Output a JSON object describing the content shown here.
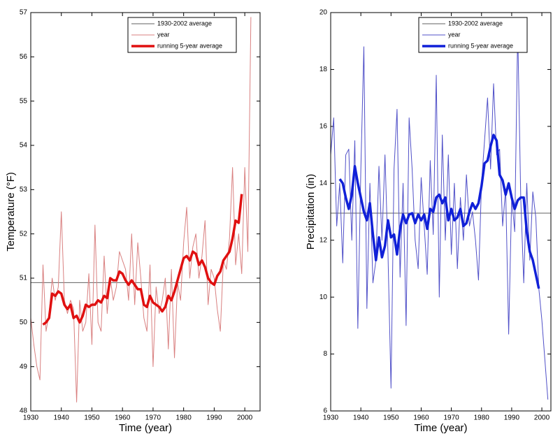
{
  "chart_data": [
    {
      "type": "line",
      "xlabel": "Time (year)",
      "ylabel": "Temperature (°F)",
      "xlim": [
        1930,
        2005
      ],
      "ylim": [
        48,
        57
      ],
      "xticks": [
        1930,
        1940,
        1950,
        1960,
        1970,
        1980,
        1990,
        2000
      ],
      "yticks": [
        48,
        49,
        50,
        51,
        52,
        53,
        54,
        55,
        56,
        57
      ],
      "legend": "upper right",
      "x": [
        1930,
        1931,
        1932,
        1933,
        1934,
        1935,
        1936,
        1937,
        1938,
        1939,
        1940,
        1941,
        1942,
        1943,
        1944,
        1945,
        1946,
        1947,
        1948,
        1949,
        1950,
        1951,
        1952,
        1953,
        1954,
        1955,
        1956,
        1957,
        1958,
        1959,
        1960,
        1961,
        1962,
        1963,
        1964,
        1965,
        1966,
        1967,
        1968,
        1969,
        1970,
        1971,
        1972,
        1973,
        1974,
        1975,
        1976,
        1977,
        1978,
        1979,
        1980,
        1981,
        1982,
        1983,
        1984,
        1985,
        1986,
        1987,
        1988,
        1989,
        1990,
        1991,
        1992,
        1993,
        1994,
        1995,
        1996,
        1997,
        1998,
        1999,
        2000,
        2001,
        2002
      ],
      "series": [
        {
          "name": "1930-2002 average",
          "color": "#606060",
          "line_width": 1,
          "x": [
            1930,
            2005
          ],
          "values": [
            50.9,
            50.9
          ]
        },
        {
          "name": "year",
          "color": "#d98080",
          "line_width": 1,
          "values": [
            50.1,
            49.5,
            49.0,
            48.7,
            51.3,
            49.8,
            50.2,
            51.0,
            50.5,
            50.8,
            52.5,
            50.5,
            50.2,
            50.5,
            50.3,
            48.2,
            50.5,
            49.8,
            50.0,
            51.1,
            49.5,
            52.2,
            50.0,
            49.8,
            51.5,
            50.2,
            51.0,
            50.5,
            50.8,
            51.6,
            51.4,
            51.2,
            50.5,
            52.0,
            50.4,
            51.8,
            51.0,
            50.1,
            49.8,
            51.3,
            49.0,
            50.8,
            50.2,
            50.5,
            51.0,
            49.4,
            51.2,
            49.2,
            50.9,
            50.5,
            51.8,
            52.6,
            51.0,
            51.7,
            52.0,
            51.0,
            51.5,
            52.3,
            50.4,
            51.2,
            51.0,
            50.3,
            49.8,
            51.4,
            51.2,
            51.9,
            53.5,
            51.3,
            52.0,
            51.1,
            53.5,
            51.6,
            56.9
          ]
        },
        {
          "name": "running 5-year average",
          "color": "#e01010",
          "line_width": 3.5,
          "values": [
            null,
            null,
            null,
            null,
            49.95,
            50.0,
            50.1,
            50.65,
            50.6,
            50.7,
            50.65,
            50.4,
            50.3,
            50.4,
            50.1,
            50.15,
            50.0,
            50.15,
            50.4,
            50.35,
            50.4,
            50.4,
            50.5,
            50.45,
            50.6,
            50.55,
            51.0,
            50.95,
            50.95,
            51.15,
            51.1,
            50.95,
            50.85,
            50.95,
            50.85,
            50.75,
            50.75,
            50.4,
            50.35,
            50.6,
            50.45,
            50.4,
            50.35,
            50.25,
            50.35,
            50.6,
            50.5,
            50.7,
            50.95,
            51.2,
            51.45,
            51.5,
            51.4,
            51.6,
            51.55,
            51.3,
            51.4,
            51.25,
            51.0,
            50.9,
            50.85,
            51.05,
            51.15,
            51.4,
            51.5,
            51.6,
            51.9,
            52.3,
            52.25,
            52.9,
            null,
            null,
            null
          ]
        }
      ]
    },
    {
      "type": "line",
      "xlabel": "Time (year)",
      "ylabel": "Precipitation (in)",
      "xlim": [
        1930,
        2003
      ],
      "ylim": [
        6,
        20
      ],
      "xticks": [
        1930,
        1940,
        1950,
        1960,
        1970,
        1980,
        1990,
        2000
      ],
      "yticks": [
        6,
        8,
        10,
        12,
        14,
        16,
        18,
        20
      ],
      "legend": "upper right",
      "x": [
        1930,
        1931,
        1932,
        1933,
        1934,
        1935,
        1936,
        1937,
        1938,
        1939,
        1940,
        1941,
        1942,
        1943,
        1944,
        1945,
        1946,
        1947,
        1948,
        1949,
        1950,
        1951,
        1952,
        1953,
        1954,
        1955,
        1956,
        1957,
        1958,
        1959,
        1960,
        1961,
        1962,
        1963,
        1964,
        1965,
        1966,
        1967,
        1968,
        1969,
        1970,
        1971,
        1972,
        1973,
        1974,
        1975,
        1976,
        1977,
        1978,
        1979,
        1980,
        1981,
        1982,
        1983,
        1984,
        1985,
        1986,
        1987,
        1988,
        1989,
        1990,
        1991,
        1992,
        1993,
        1994,
        1995,
        1996,
        1997,
        1998,
        1999,
        2000,
        2001,
        2002
      ],
      "series": [
        {
          "name": "1930-2002 average",
          "color": "#606060",
          "line_width": 1,
          "x": [
            1930,
            2003
          ],
          "values": [
            12.95,
            12.95
          ]
        },
        {
          "name": "year",
          "color": "#5050c8",
          "line_width": 1,
          "values": [
            15.0,
            16.3,
            12.5,
            14.0,
            11.2,
            15.0,
            15.2,
            12.0,
            15.5,
            8.9,
            14.5,
            18.8,
            9.6,
            14.0,
            10.5,
            11.3,
            14.6,
            12.0,
            15.0,
            11.5,
            6.8,
            14.5,
            16.6,
            10.7,
            14.0,
            9.0,
            16.3,
            14.5,
            12.0,
            11.0,
            14.2,
            12.5,
            10.8,
            14.8,
            12.2,
            17.8,
            10.0,
            15.7,
            12.0,
            15.0,
            11.5,
            14.0,
            11.0,
            13.5,
            12.0,
            14.3,
            12.5,
            13.0,
            12.0,
            10.6,
            14.0,
            15.5,
            17.0,
            14.5,
            17.5,
            15.0,
            15.2,
            12.5,
            13.8,
            8.7,
            13.5,
            12.3,
            19.4,
            13.5,
            10.5,
            14.0,
            11.3,
            13.7,
            12.8,
            10.3,
            9.2,
            7.8,
            6.4
          ]
        },
        {
          "name": "running 5-year average",
          "color": "#1020d8",
          "line_width": 3.5,
          "values": [
            null,
            null,
            null,
            14.15,
            14.0,
            13.5,
            13.1,
            13.6,
            14.6,
            14.0,
            13.5,
            13.0,
            12.7,
            13.3,
            12.2,
            11.3,
            12.1,
            11.4,
            11.8,
            12.7,
            12.1,
            12.2,
            11.5,
            12.4,
            12.9,
            12.6,
            12.9,
            12.95,
            12.6,
            12.9,
            12.7,
            12.9,
            12.4,
            13.1,
            13.0,
            13.5,
            13.6,
            13.3,
            13.5,
            12.7,
            13.1,
            12.7,
            12.8,
            13.1,
            12.5,
            12.6,
            13.0,
            13.3,
            13.1,
            13.3,
            13.9,
            14.7,
            14.8,
            15.3,
            15.7,
            15.5,
            14.3,
            14.1,
            13.6,
            14.0,
            13.5,
            13.1,
            13.4,
            13.5,
            13.5,
            12.3,
            11.6,
            11.3,
            10.8,
            10.3,
            null,
            null,
            null
          ]
        }
      ]
    }
  ]
}
